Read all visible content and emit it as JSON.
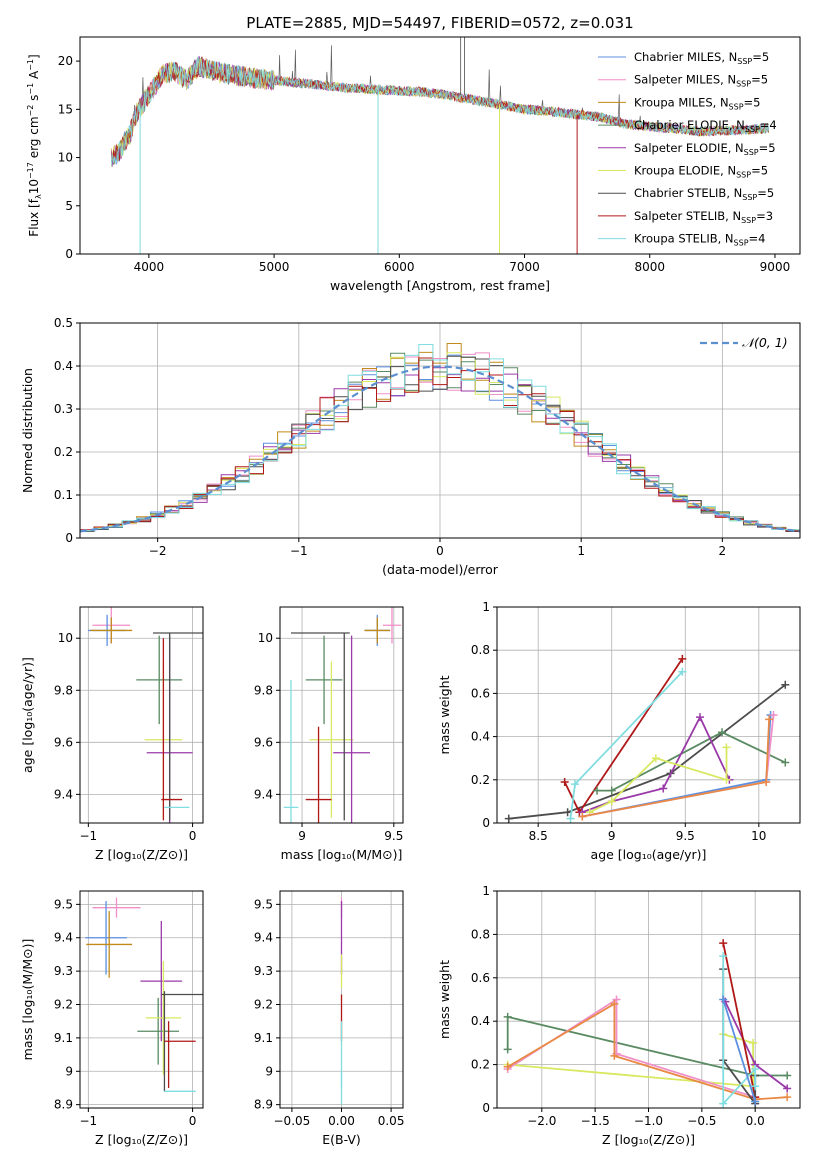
{
  "figure": {
    "title": "PLATE=2885, MJD=54497, FIBERID=0572, z=0.031"
  },
  "legend_series": [
    {
      "name": "Chabrier MILES, N",
      "sub": "SSP",
      "suffix": "=5",
      "color": "#5b8fe0"
    },
    {
      "name": "Salpeter MILES, N",
      "sub": "SSP",
      "suffix": "=5",
      "color": "#f08fc8"
    },
    {
      "name": "Kroupa MILES, N",
      "sub": "SSP",
      "suffix": "=5",
      "color": "#c08b1a"
    },
    {
      "name": "Chabrier ELODIE, N",
      "sub": "SSP",
      "suffix": "=4",
      "color": "#5a8a62"
    },
    {
      "name": "Salpeter ELODIE, N",
      "sub": "SSP",
      "suffix": "=5",
      "color": "#9a3aa8"
    },
    {
      "name": "Kroupa ELODIE, N",
      "sub": "SSP",
      "suffix": "=5",
      "color": "#d8e860"
    },
    {
      "name": "Chabrier STELIB, N",
      "sub": "SSP",
      "suffix": "=5",
      "color": "#4d4d4d"
    },
    {
      "name": "Salpeter STELIB, N",
      "sub": "SSP",
      "suffix": "=3",
      "color": "#b01818"
    },
    {
      "name": "Kroupa STELIB, N",
      "sub": "SSP",
      "suffix": "=4",
      "color": "#80dde0"
    }
  ],
  "chart_data": [
    {
      "id": "spectrum",
      "type": "line",
      "xlabel": "wavelength [Angstrom, rest frame]",
      "ylabel_parts": [
        "Flux [f",
        "λ",
        "10",
        "−17",
        " erg cm",
        "−2",
        " s",
        "−1",
        " A",
        "−1",
        "]"
      ],
      "xlim": [
        3450,
        9200
      ],
      "ylim": [
        0,
        22.5
      ],
      "xticks": [
        4000,
        5000,
        6000,
        7000,
        8000,
        9000
      ],
      "yticks": [
        0,
        5,
        10,
        15,
        20
      ],
      "continuum": {
        "x": [
          3700,
          3760,
          3800,
          3850,
          3900,
          3950,
          4000,
          4100,
          4200,
          4300,
          4400,
          4500,
          4700,
          5000,
          5300,
          5600,
          5900,
          6200,
          6500,
          6800,
          7000,
          7200,
          7400,
          7600,
          7800,
          8000,
          8200,
          8400,
          8600,
          8800,
          8950
        ],
        "y": [
          10.0,
          10.5,
          11.5,
          12.5,
          14.5,
          15.5,
          16.5,
          18.5,
          19.0,
          18.0,
          19.5,
          19.0,
          18.5,
          18.0,
          17.6,
          17.2,
          17.0,
          16.8,
          16.2,
          15.5,
          15.0,
          14.8,
          14.5,
          14.2,
          13.5,
          13.2,
          13.0,
          12.7,
          12.8,
          12.9,
          13.0
        ]
      },
      "dips": [
        {
          "x": 3930,
          "y": 0
        },
        {
          "x": 5830,
          "y": 0
        },
        {
          "x": 6800,
          "y": 0
        },
        {
          "x": 7420,
          "y": 0
        }
      ]
    },
    {
      "id": "residuals",
      "type": "histogram",
      "xlabel": "(data-model)/error",
      "ylabel": "Normed distribution",
      "xlim": [
        -2.55,
        2.55
      ],
      "ylim": [
        0,
        0.5
      ],
      "xticks": [
        -2,
        -1,
        0,
        1,
        2
      ],
      "yticks": [
        0.0,
        0.1,
        0.2,
        0.3,
        0.4,
        0.5
      ],
      "bin_width": 0.1,
      "gaussian_label": "𝒩(0, 1)"
    },
    {
      "id": "age-vs-z",
      "type": "errorbar",
      "xlabel": "Z [log₁₀(Z/Z⊙)]",
      "ylabel": "age  [log₁₀(age/yr)]",
      "xlim": [
        -1.08,
        0.1
      ],
      "ylim": [
        9.29,
        10.12
      ],
      "xticks": [
        -1,
        0
      ],
      "yticks": [
        9.4,
        9.6,
        9.8,
        10.0
      ],
      "points": [
        {
          "x": -0.78,
          "xerr": 0.18,
          "y": 10.05,
          "yerr": 0.07,
          "color": "#f08fc8"
        },
        {
          "x": -0.82,
          "xerr": 0.18,
          "y": 10.03,
          "yerr": 0.06,
          "color": "#5b8fe0"
        },
        {
          "x": -0.78,
          "xerr": 0.2,
          "y": 10.03,
          "yerr": 0.05,
          "color": "#c08b1a"
        },
        {
          "x": -0.32,
          "xerr": 0.22,
          "y": 9.84,
          "yerr": 0.17,
          "color": "#5a8a62"
        },
        {
          "x": -0.28,
          "xerr": 0.18,
          "y": 9.61,
          "yerr": 0.3,
          "color": "#d8e860"
        },
        {
          "x": -0.22,
          "xerr": 0.22,
          "y": 9.56,
          "yerr": 0.45,
          "color": "#9a3aa8"
        },
        {
          "x": -0.28,
          "xerr": 0.0,
          "y": 9.65,
          "yerr": 0.35,
          "color": "#b01818"
        },
        {
          "x": -0.08,
          "xerr": 0.3,
          "y": 10.02,
          "yerr": 0.0,
          "color": "#4d4d4d"
        },
        {
          "x": -0.22,
          "xerr": 0.0,
          "y": 9.66,
          "yerr": 0.36,
          "color": "#4d4d4d"
        },
        {
          "x": -0.2,
          "xerr": 0.1,
          "y": 9.38,
          "yerr": 0.0,
          "color": "#b01818"
        },
        {
          "x": -0.15,
          "xerr": 0.12,
          "y": 9.35,
          "yerr": 0.0,
          "color": "#80dde0"
        }
      ]
    },
    {
      "id": "age-vs-mass",
      "type": "errorbar",
      "xlabel": "mass [log₁₀(M/M⊙)]",
      "ylabel": "",
      "xlim": [
        8.88,
        9.55
      ],
      "ylim": [
        9.29,
        10.12
      ],
      "xticks": [
        9.0,
        9.5
      ],
      "yticks": [
        9.4,
        9.6,
        9.8,
        10.0
      ],
      "points": [
        {
          "x": 9.49,
          "xerr": 0.05,
          "y": 10.05,
          "yerr": 0.07,
          "color": "#f08fc8"
        },
        {
          "x": 9.41,
          "xerr": 0.07,
          "y": 10.03,
          "yerr": 0.06,
          "color": "#5b8fe0"
        },
        {
          "x": 9.41,
          "xerr": 0.07,
          "y": 10.03,
          "yerr": 0.05,
          "color": "#c08b1a"
        },
        {
          "x": 9.12,
          "xerr": 0.1,
          "y": 9.84,
          "yerr": 0.17,
          "color": "#5a8a62"
        },
        {
          "x": 9.16,
          "xerr": 0.12,
          "y": 9.61,
          "yerr": 0.3,
          "color": "#d8e860"
        },
        {
          "x": 9.27,
          "xerr": 0.1,
          "y": 9.56,
          "yerr": 0.45,
          "color": "#9a3aa8"
        },
        {
          "x": 9.09,
          "xerr": 0.07,
          "y": 9.38,
          "yerr": 0.28,
          "color": "#b01818"
        },
        {
          "x": 9.1,
          "xerr": 0.16,
          "y": 10.02,
          "yerr": 0.0,
          "color": "#4d4d4d"
        },
        {
          "x": 9.23,
          "xerr": 0.0,
          "y": 9.66,
          "yerr": 0.36,
          "color": "#4d4d4d"
        },
        {
          "x": 8.94,
          "xerr": 0.04,
          "y": 9.35,
          "yerr": 0.49,
          "color": "#80dde0"
        }
      ]
    },
    {
      "id": "mass-weight-vs-age",
      "type": "line",
      "xlabel": "age  [log₁₀(age/yr)]",
      "ylabel": "mass weight",
      "xlim": [
        8.22,
        10.28
      ],
      "ylim": [
        0,
        1
      ],
      "xticks": [
        8.5,
        9.0,
        9.5,
        10.0
      ],
      "yticks": [
        0.0,
        0.2,
        0.4,
        0.6,
        0.8,
        1.0
      ],
      "series": [
        {
          "color": "#4d4d4d",
          "points": [
            [
              8.3,
              0.02
            ],
            [
              8.7,
              0.05
            ],
            [
              9.4,
              0.23
            ],
            [
              10.18,
              0.64
            ]
          ]
        },
        {
          "color": "#b01818",
          "points": [
            [
              8.68,
              0.19
            ],
            [
              8.78,
              0.05
            ],
            [
              9.48,
              0.76
            ]
          ]
        },
        {
          "color": "#80dde0",
          "points": [
            [
              8.72,
              0.02
            ],
            [
              8.75,
              0.18
            ],
            [
              9.48,
              0.7
            ]
          ]
        },
        {
          "color": "#5a8a62",
          "points": [
            [
              8.9,
              0.15
            ],
            [
              9.0,
              0.15
            ],
            [
              9.75,
              0.42
            ],
            [
              10.18,
              0.28
            ]
          ]
        },
        {
          "color": "#9a3aa8",
          "points": [
            [
              8.8,
              0.05
            ],
            [
              9.0,
              0.1
            ],
            [
              9.35,
              0.16
            ],
            [
              9.6,
              0.49
            ],
            [
              9.8,
              0.2
            ]
          ]
        },
        {
          "color": "#d8e860",
          "points": [
            [
              8.85,
              0.05
            ],
            [
              9.0,
              0.1
            ],
            [
              9.3,
              0.3
            ],
            [
              9.78,
              0.2
            ],
            [
              9.78,
              0.35
            ]
          ]
        },
        {
          "color": "#5b8fe0",
          "points": [
            [
              8.8,
              0.03
            ],
            [
              10.05,
              0.2
            ],
            [
              10.08,
              0.5
            ]
          ]
        },
        {
          "color": "#f08fc8",
          "points": [
            [
              8.8,
              0.03
            ],
            [
              10.05,
              0.19
            ],
            [
              10.1,
              0.5
            ]
          ]
        },
        {
          "color": "#e88a45",
          "points": [
            [
              8.8,
              0.03
            ],
            [
              10.05,
              0.19
            ],
            [
              10.07,
              0.48
            ]
          ]
        }
      ]
    },
    {
      "id": "mass-vs-z",
      "type": "errorbar",
      "xlabel": "Z [log₁₀(Z/Z⊙)]",
      "ylabel": "mass [log₁₀(M/M⊙)]",
      "xlim": [
        -1.08,
        0.1
      ],
      "ylim": [
        8.89,
        9.54
      ],
      "xticks": [
        -1,
        0
      ],
      "yticks": [
        8.9,
        9.0,
        9.1,
        9.2,
        9.3,
        9.4,
        9.5
      ],
      "points": [
        {
          "x": -0.73,
          "xerr": 0.23,
          "y": 9.49,
          "yerr": 0.03,
          "color": "#f08fc8"
        },
        {
          "x": -0.83,
          "xerr": 0.2,
          "y": 9.4,
          "yerr": 0.11,
          "color": "#5b8fe0"
        },
        {
          "x": -0.8,
          "xerr": 0.22,
          "y": 9.38,
          "yerr": 0.1,
          "color": "#c08b1a"
        },
        {
          "x": -0.3,
          "xerr": 0.2,
          "y": 9.27,
          "yerr": 0.18,
          "color": "#9a3aa8"
        },
        {
          "x": -0.33,
          "xerr": 0.2,
          "y": 9.12,
          "yerr": 0.1,
          "color": "#5a8a62"
        },
        {
          "x": -0.28,
          "xerr": 0.17,
          "y": 9.16,
          "yerr": 0.17,
          "color": "#d8e860"
        },
        {
          "x": -0.1,
          "xerr": 0.2,
          "y": 9.23,
          "yerr": 0.0,
          "color": "#4d4d4d"
        },
        {
          "x": -0.27,
          "xerr": 0.0,
          "y": 9.09,
          "yerr": 0.15,
          "color": "#4d4d4d"
        },
        {
          "x": -0.12,
          "xerr": 0.15,
          "y": 9.09,
          "yerr": 0.0,
          "color": "#b01818"
        },
        {
          "x": -0.12,
          "xerr": 0.15,
          "y": 8.94,
          "yerr": 0.0,
          "color": "#80dde0"
        },
        {
          "x": -0.23,
          "xerr": 0.0,
          "y": 9.05,
          "yerr": 0.1,
          "color": "#b01818"
        }
      ]
    },
    {
      "id": "mass-vs-ebv",
      "type": "errorbar",
      "xlabel": "E(B-V)",
      "ylabel": "",
      "xlim": [
        -0.062,
        0.062
      ],
      "ylim": [
        8.89,
        9.54
      ],
      "xticks": [
        -0.05,
        0.0,
        0.05
      ],
      "xtick_labels": [
        "−0.05",
        "0.00",
        "0.05"
      ],
      "yticks": [
        8.9,
        9.0,
        9.1,
        9.2,
        9.3,
        9.4,
        9.5
      ],
      "points": [
        {
          "x": 0.0,
          "xerr": 0.0,
          "y": 9.49,
          "yerr": 0.03,
          "color": "#f08fc8"
        },
        {
          "x": 0.0,
          "xerr": 0.0,
          "y": 9.4,
          "yerr": 0.11,
          "color": "#9a3aa8"
        },
        {
          "x": 0.0,
          "xerr": 0.0,
          "y": 9.3,
          "yerr": 0.05,
          "color": "#d8e860"
        },
        {
          "x": 0.0,
          "xerr": 0.0,
          "y": 9.16,
          "yerr": 0.07,
          "color": "#b01818"
        },
        {
          "x": 0.0,
          "xerr": 0.0,
          "y": 9.05,
          "yerr": 0.1,
          "color": "#80dde0"
        },
        {
          "x": 0.0,
          "xerr": 0.0,
          "y": 8.95,
          "yerr": 0.05,
          "color": "#80dde0"
        }
      ]
    },
    {
      "id": "mass-weight-vs-z",
      "type": "line",
      "xlabel": "Z [log₁₀(Z/Z⊙)]",
      "ylabel": "mass weight",
      "xlim": [
        -2.42,
        0.42
      ],
      "ylim": [
        0,
        1
      ],
      "xticks": [
        -2.0,
        -1.5,
        -1.0,
        -0.5,
        0.0
      ],
      "xtick_labels": [
        "−2.0",
        "−1.5",
        "−1.0",
        "−0.5",
        "0.0"
      ],
      "yticks": [
        0.0,
        0.2,
        0.4,
        0.6,
        0.8,
        1.0
      ],
      "series": [
        {
          "color": "#5a8a62",
          "points": [
            [
              -2.32,
              0.27
            ],
            [
              -2.32,
              0.42
            ],
            [
              0.0,
              0.15
            ],
            [
              0.3,
              0.15
            ]
          ]
        },
        {
          "color": "#d8e860",
          "points": [
            [
              -2.32,
              0.2
            ],
            [
              -0.02,
              0.1
            ],
            [
              -0.02,
              0.3
            ],
            [
              -0.3,
              0.34
            ]
          ]
        },
        {
          "color": "#f08fc8",
          "points": [
            [
              -2.32,
              0.18
            ],
            [
              -1.3,
              0.5
            ],
            [
              -1.3,
              0.25
            ],
            [
              0.0,
              0.05
            ]
          ]
        },
        {
          "color": "#e88a45",
          "points": [
            [
              -2.32,
              0.19
            ],
            [
              -1.32,
              0.48
            ],
            [
              -1.32,
              0.24
            ],
            [
              0.0,
              0.04
            ],
            [
              0.3,
              0.05
            ]
          ]
        },
        {
          "color": "#9a3aa8",
          "points": [
            [
              -0.28,
              0.49
            ],
            [
              0.0,
              0.2
            ],
            [
              0.3,
              0.09
            ]
          ]
        },
        {
          "color": "#b01818",
          "points": [
            [
              -0.3,
              0.76
            ],
            [
              0.0,
              0.05
            ]
          ]
        },
        {
          "color": "#4d4d4d",
          "points": [
            [
              -0.3,
              0.64
            ],
            [
              -0.3,
              0.22
            ],
            [
              0.0,
              0.02
            ],
            [
              0.0,
              0.15
            ]
          ]
        },
        {
          "color": "#80dde0",
          "points": [
            [
              -0.3,
              0.7
            ],
            [
              -0.3,
              0.02
            ],
            [
              0.0,
              0.18
            ],
            [
              0.0,
              0.1
            ]
          ]
        },
        {
          "color": "#5b8fe0",
          "points": [
            [
              -0.3,
              0.5
            ],
            [
              0.0,
              0.03
            ]
          ]
        }
      ]
    }
  ]
}
